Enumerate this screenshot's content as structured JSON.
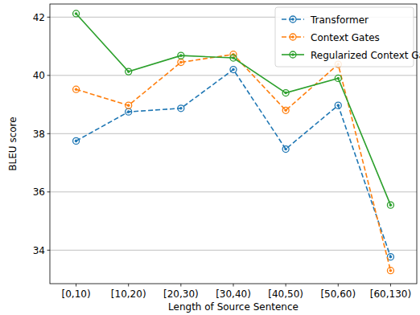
{
  "chart_data": {
    "type": "line",
    "x_label": "Length of Source Sentence",
    "y_label": "BLEU score",
    "categories": [
      "[0,10)",
      "[10,20)",
      "[20,30)",
      "[30,40)",
      "[40,50)",
      "[50,60)",
      "[60,130)"
    ],
    "series": [
      {
        "name": "Transformer",
        "color": "#1f77b4",
        "line_style": "dashed",
        "marker": "circle",
        "values": [
          37.75,
          38.75,
          38.87,
          40.2,
          37.47,
          38.97,
          33.77
        ]
      },
      {
        "name": "Context Gates",
        "color": "#ff7f0e",
        "line_style": "dashed",
        "marker": "circle",
        "values": [
          39.52,
          38.97,
          40.45,
          40.72,
          38.8,
          40.38,
          33.3
        ]
      },
      {
        "name": "Regularized Context Gates",
        "color": "#2ca02c",
        "line_style": "solid",
        "marker": "circle",
        "values": [
          42.12,
          40.13,
          40.68,
          40.6,
          39.4,
          39.9,
          35.55
        ]
      }
    ],
    "ylim": [
      32.85,
      42.45
    ],
    "yticks": [
      34,
      36,
      38,
      40,
      42
    ],
    "grid": true,
    "legend": "upper-right"
  }
}
